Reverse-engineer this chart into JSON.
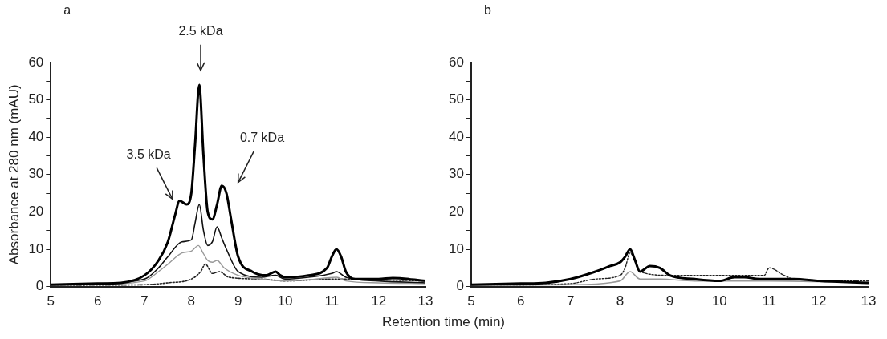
{
  "chart_data": [
    {
      "type": "line",
      "title": "a",
      "xlabel": "Retention time (min)",
      "ylabel": "Absorbance at 280 nm (mAU)",
      "xlim": [
        5,
        13
      ],
      "xticks": [
        5,
        6,
        7,
        8,
        9,
        10,
        11,
        12,
        13
      ],
      "ylim": [
        0,
        60
      ],
      "yticks": [
        0,
        {
          "value": 5,
          "label": null
        },
        10,
        {
          "value": 15,
          "label": null
        },
        20,
        {
          "value": 25,
          "label": null
        },
        30,
        {
          "value": 35,
          "label": null
        },
        40,
        {
          "value": 45,
          "label": null
        },
        50,
        {
          "value": 55,
          "label": null
        },
        60
      ],
      "grid": false,
      "legend": false,
      "marker": "none",
      "annotations": [
        "3.5 kDa",
        "2.5 kDa",
        "0.7 kDa"
      ],
      "series": [
        {
          "color": "#000000",
          "line_style": "solid",
          "x": [
            5,
            6,
            6.5,
            7,
            7.3,
            7.5,
            7.65,
            7.75,
            7.9,
            8.0,
            8.08,
            8.17,
            8.26,
            8.35,
            8.45,
            8.55,
            8.65,
            8.75,
            8.85,
            9.0,
            9.3,
            9.6,
            9.8,
            9.9,
            10,
            10.5,
            10.9,
            11.0,
            11.1,
            11.2,
            11.3,
            11.5,
            12,
            12.3,
            13
          ],
          "values": [
            0.5,
            0.8,
            1,
            3,
            7,
            12,
            19,
            23,
            22,
            25,
            38,
            54,
            35,
            20,
            18,
            22,
            27,
            25,
            18,
            8,
            4,
            3,
            4,
            3,
            2.5,
            3,
            5,
            8,
            10,
            8,
            4,
            2,
            2,
            2.3,
            1.5
          ]
        },
        {
          "color": "#111111",
          "line_style": "solid",
          "x": [
            5,
            6,
            7,
            7.3,
            7.5,
            7.8,
            8.0,
            8.08,
            8.17,
            8.26,
            8.35,
            8.45,
            8.55,
            8.65,
            8.75,
            9,
            9.5,
            9.8,
            10,
            10.5,
            11,
            11.1,
            11.3,
            12,
            13
          ],
          "values": [
            0.5,
            0.8,
            2,
            5,
            8,
            12,
            12.5,
            17,
            22,
            15,
            11,
            12,
            16,
            13,
            10,
            4,
            2.5,
            3,
            2,
            2.5,
            3.5,
            4,
            2.5,
            1.5,
            1
          ]
        },
        {
          "color": "#999999",
          "line_style": "solid",
          "x": [
            5,
            6,
            7,
            7.3,
            7.5,
            7.8,
            8.0,
            8.15,
            8.25,
            8.35,
            8.45,
            8.55,
            8.7,
            9,
            9.5,
            10,
            10.5,
            11.1,
            11.3,
            12,
            13
          ],
          "values": [
            0.3,
            0.6,
            1.5,
            4,
            6,
            9,
            9.5,
            11,
            9,
            7,
            6.5,
            7,
            5,
            3,
            2,
            1.5,
            1.8,
            2.5,
            1.5,
            1,
            0.8
          ]
        },
        {
          "color": "#222222",
          "line_style": "dotted",
          "x": [
            5,
            6,
            7,
            7.5,
            8,
            8.2,
            8.3,
            8.45,
            8.6,
            8.8,
            9.5,
            10,
            11,
            12,
            13
          ],
          "values": [
            0.3,
            0.4,
            0.5,
            1,
            2,
            4,
            6,
            3.5,
            4,
            2.5,
            2,
            1.5,
            2,
            1.8,
            1.5
          ]
        }
      ]
    },
    {
      "type": "line",
      "title": "b",
      "xlim": [
        5,
        13
      ],
      "xticks": [
        5,
        6,
        7,
        8,
        9,
        10,
        11,
        12,
        13
      ],
      "ylim": [
        0,
        60
      ],
      "yticks": [
        0,
        {
          "value": 5,
          "label": null
        },
        10,
        {
          "value": 15,
          "label": null
        },
        20,
        {
          "value": 25,
          "label": null
        },
        30,
        {
          "value": 35,
          "label": null
        },
        40,
        {
          "value": 45,
          "label": null
        },
        50,
        {
          "value": 55,
          "label": null
        },
        60
      ],
      "grid": false,
      "legend": false,
      "marker": "none",
      "series": [
        {
          "color": "#000000",
          "line_style": "solid",
          "x": [
            5,
            6,
            6.5,
            7,
            7.5,
            7.8,
            8.0,
            8.1,
            8.2,
            8.3,
            8.4,
            8.6,
            8.8,
            9,
            9.5,
            10,
            10.3,
            10.5,
            10.8,
            11,
            11.5,
            12,
            13
          ],
          "values": [
            0.5,
            0.8,
            1,
            2,
            4,
            5.5,
            6.5,
            8,
            10,
            7,
            4,
            5.5,
            5,
            3,
            2,
            1.5,
            2.5,
            2.5,
            2,
            2,
            2,
            1.5,
            1
          ]
        },
        {
          "color": "#999999",
          "line_style": "solid",
          "x": [
            5,
            7,
            8,
            8.2,
            8.4,
            8.8,
            9.5,
            10,
            11,
            13
          ],
          "values": [
            0.3,
            0.5,
            1.5,
            4,
            2,
            2,
            1.5,
            1.5,
            1.5,
            1
          ]
        },
        {
          "color": "#222222",
          "line_style": "dotted",
          "x": [
            5,
            7,
            7.5,
            8,
            8.1,
            8.2,
            8.4,
            9,
            10,
            10.5,
            10.9,
            11,
            11.3,
            11.5,
            13
          ],
          "values": [
            0.3,
            0.8,
            2,
            3,
            5,
            9,
            4,
            3,
            3,
            3,
            3,
            5,
            3,
            2,
            1.5
          ]
        }
      ]
    }
  ]
}
